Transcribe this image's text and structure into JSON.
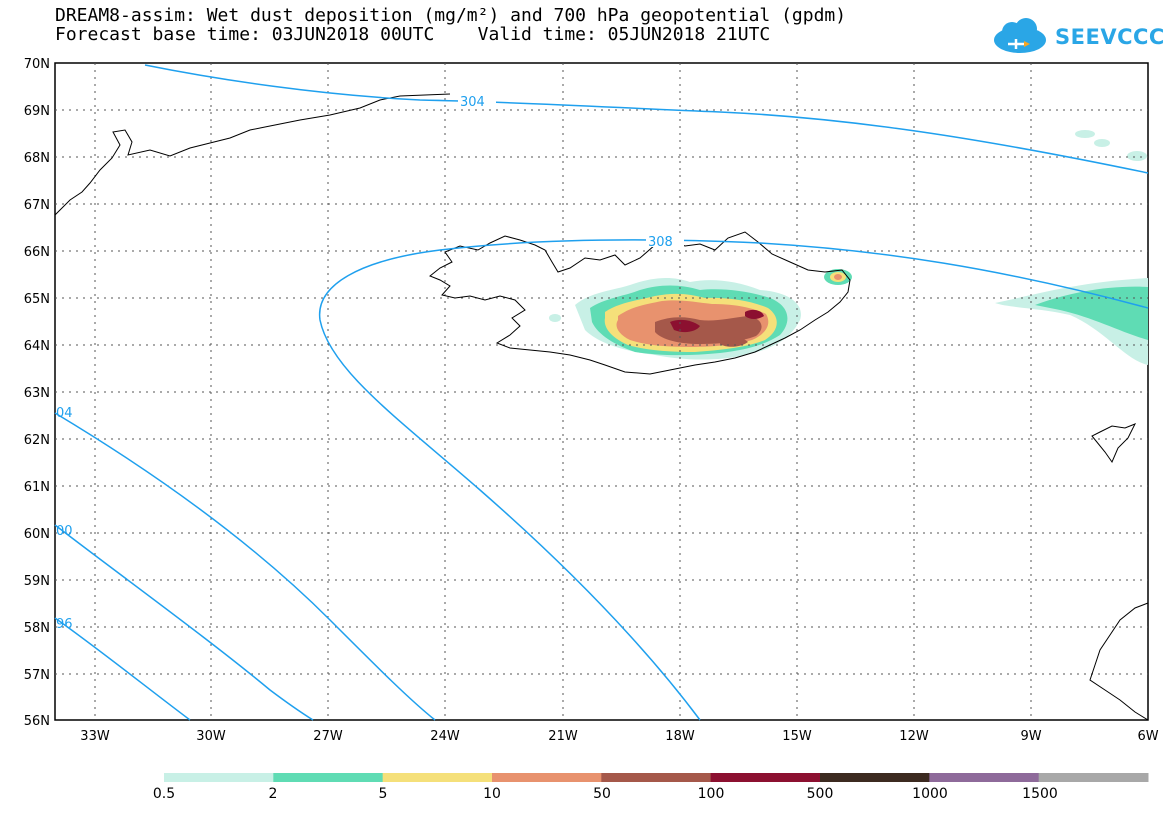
{
  "title": {
    "line1": "DREAM8-assim: Wet dust deposition (mg/m²) and 700 hPa geopotential (gpdm)",
    "line2": "Forecast base time: 03JUN2018 00UTC    Valid time: 05JUN2018 21UTC"
  },
  "logo": {
    "text": "SEEVCCC"
  },
  "axes": {
    "lat_labels": [
      "70N",
      "69N",
      "68N",
      "67N",
      "66N",
      "65N",
      "64N",
      "63N",
      "62N",
      "61N",
      "60N",
      "59N",
      "58N",
      "57N",
      "56N"
    ],
    "lon_labels": [
      "33W",
      "30W",
      "27W",
      "24W",
      "21W",
      "18W",
      "15W",
      "12W",
      "9W",
      "6W"
    ]
  },
  "contours": {
    "labels": [
      "304",
      "308",
      "04",
      "00",
      "96"
    ]
  },
  "legend": {
    "colors": [
      "#c8f0e6",
      "#5fdcb4",
      "#f5e07a",
      "#e8926e",
      "#a5584a",
      "#8c1030",
      "#3c2a20",
      "#8e6a9a",
      "#a8a8a8"
    ],
    "labels": [
      "0.5",
      "2",
      "5",
      "10",
      "50",
      "100",
      "500",
      "1000",
      "1500"
    ]
  }
}
